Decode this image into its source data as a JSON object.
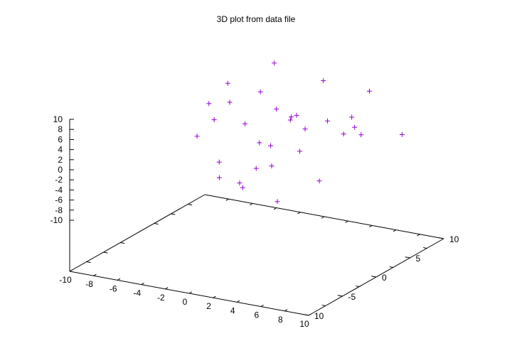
{
  "chart_data": {
    "type": "scatter",
    "title": "3D plot from data file",
    "xlim": [
      -10,
      10
    ],
    "ylim": [
      -10,
      10
    ],
    "zlim": [
      -10,
      10
    ],
    "x_ticks": [
      "-10",
      "-8",
      "-6",
      "-4",
      "-2",
      "0",
      "2",
      "4",
      "6",
      "8",
      "10"
    ],
    "y_ticks": [
      "10",
      "5",
      "0",
      "-5",
      "10"
    ],
    "z_ticks": [
      "10",
      "8",
      "6",
      "4",
      "2",
      "0",
      "-2",
      "-4",
      "-6",
      "-8",
      "-10"
    ],
    "marker": "plus",
    "point_color": "#9400d3",
    "grid": false,
    "points": [
      [
        -6.1,
        6.5,
        6.3
      ],
      [
        -1.2,
        7.1,
        0.7
      ],
      [
        -3.5,
        8.4,
        -10.4
      ],
      [
        3.5,
        8.3,
        0.4
      ],
      [
        4.0,
        3.4,
        5.6
      ],
      [
        -1.3,
        2.7,
        -0.5
      ],
      [
        3.2,
        1.5,
        5.1
      ],
      [
        2.7,
        1.6,
        0.4
      ],
      [
        -5.2,
        2.9,
        2.2
      ],
      [
        -6.5,
        7.5,
        1.6
      ],
      [
        -7.0,
        5.3,
        2.8
      ],
      [
        2.5,
        0.7,
        7.8
      ],
      [
        8.0,
        1.3,
        6.2
      ],
      [
        4.9,
        4.2,
        2.8
      ],
      [
        -2.0,
        5.6,
        -3.6
      ],
      [
        7.7,
        7.9,
        1.1
      ],
      [
        -4.6,
        2.6,
        -8.8
      ],
      [
        -3.2,
        6.2,
        6.1
      ],
      [
        -0.5,
        0.8,
        -3.8
      ],
      [
        2.7,
        4.5,
        -7.7
      ],
      [
        -1.4,
        0.4,
        -7.7
      ],
      [
        -3.0,
        7.9,
        10.6
      ],
      [
        -7.2,
        3.9,
        -2.7
      ],
      [
        -2.9,
        2.6,
        -9.1
      ],
      [
        -4.1,
        1.7,
        -4.8
      ],
      [
        1.0,
        8.1,
        8.7
      ],
      [
        3.6,
        7.7,
        2.9
      ],
      [
        4.4,
        8.9,
        7.5
      ],
      [
        -4.6,
        6.4,
        -1.0
      ],
      [
        0.4,
        2.2,
        7.3
      ],
      [
        1.5,
        0.4,
        -9.2
      ],
      [
        3.0,
        0.6,
        8.4
      ]
    ]
  }
}
